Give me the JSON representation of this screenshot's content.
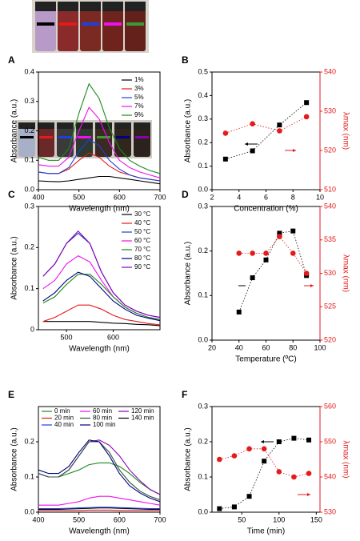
{
  "chart_data": [
    {
      "type": "line",
      "label": "A",
      "xlabel": "Wavelength (nm)",
      "ylabel": "Absorbance (a.u.)",
      "x": [
        400,
        425,
        450,
        475,
        500,
        525,
        550,
        575,
        600,
        625,
        650,
        675,
        700
      ],
      "xlim": [
        400,
        700
      ],
      "xticks": [
        400,
        500,
        600,
        700
      ],
      "ylim": [
        0,
        0.4
      ],
      "yticks": [
        {
          "value": 0,
          "label": "0.0"
        },
        0.1,
        0.2,
        0.3,
        0.4
      ],
      "legend": "upper right",
      "series": [
        {
          "name": "1%",
          "color": "#000000",
          "values": [
            0.03,
            0.028,
            0.027,
            0.03,
            0.035,
            0.04,
            0.045,
            0.045,
            0.04,
            0.035,
            0.03,
            0.025,
            0.02
          ]
        },
        {
          "name": "3%",
          "color": "#e41a1c",
          "values": [
            0.06,
            0.055,
            0.055,
            0.07,
            0.1,
            0.125,
            0.11,
            0.08,
            0.06,
            0.05,
            0.04,
            0.035,
            0.03
          ]
        },
        {
          "name": "5%",
          "color": "#1f3fd6",
          "values": [
            0.06,
            0.055,
            0.055,
            0.075,
            0.13,
            0.17,
            0.15,
            0.1,
            0.07,
            0.05,
            0.04,
            0.035,
            0.03
          ]
        },
        {
          "name": "7%",
          "color": "#ee10ee",
          "values": [
            0.085,
            0.08,
            0.08,
            0.11,
            0.2,
            0.28,
            0.24,
            0.16,
            0.1,
            0.075,
            0.06,
            0.05,
            0.04
          ]
        },
        {
          "name": "9%",
          "color": "#1a8a1a",
          "values": [
            0.11,
            0.1,
            0.1,
            0.14,
            0.26,
            0.36,
            0.31,
            0.21,
            0.14,
            0.1,
            0.08,
            0.065,
            0.055
          ]
        }
      ]
    },
    {
      "type": "scatter",
      "label": "B",
      "xlabel": "Concentration (%)",
      "ylabel": "Absorbance (a.u.)",
      "y2label": "λmax (nm)",
      "x": [
        3,
        5,
        7,
        9
      ],
      "xlim": [
        2,
        10
      ],
      "xticks": [
        2,
        4,
        6,
        8,
        10
      ],
      "ylim": [
        0,
        0.5
      ],
      "yticks": [
        {
          "value": 0,
          "label": "0.0"
        },
        0.1,
        0.2,
        0.3,
        0.4,
        0.5
      ],
      "y2lim": [
        510,
        540
      ],
      "y2ticks": [
        510,
        520,
        530,
        540
      ],
      "series": [
        {
          "color": "#000000",
          "marker": "square",
          "values": [
            0.13,
            0.165,
            0.275,
            0.37
          ]
        },
        {
          "color": "#e41a1c",
          "marker": "circle",
          "axis": "y2",
          "values": [
            524.4,
            526.8,
            525,
            528.6
          ]
        }
      ]
    },
    {
      "type": "line",
      "label": "C",
      "xlabel": "Wavelength (nm)",
      "ylabel": "Absorbance (a.u.)",
      "x": [
        450,
        475,
        500,
        525,
        550,
        575,
        600,
        625,
        650,
        675,
        700
      ],
      "xlim": [
        440,
        700
      ],
      "xticks": [
        500,
        600
      ],
      "ylim": [
        0,
        0.3
      ],
      "yticks": [
        0,
        0.1,
        0.2,
        0.3
      ],
      "legend": "upper right",
      "series": [
        {
          "name": "30 °C",
          "color": "#000000",
          "values": [
            0.02,
            0.02,
            0.02,
            0.02,
            0.02,
            0.018,
            0.016,
            0.015,
            0.013,
            0.012,
            0.01
          ]
        },
        {
          "name": "40 °C",
          "color": "#e41a1c",
          "values": [
            0.02,
            0.03,
            0.045,
            0.06,
            0.06,
            0.05,
            0.035,
            0.025,
            0.02,
            0.015,
            0.012
          ]
        },
        {
          "name": "50 °C",
          "color": "#1f3fd6",
          "values": [
            0.13,
            0.16,
            0.21,
            0.235,
            0.21,
            0.14,
            0.09,
            0.06,
            0.045,
            0.035,
            0.03
          ]
        },
        {
          "name": "60 °C",
          "color": "#ee10ee",
          "values": [
            0.1,
            0.12,
            0.16,
            0.18,
            0.165,
            0.12,
            0.08,
            0.055,
            0.04,
            0.03,
            0.025
          ]
        },
        {
          "name": "70 °C",
          "color": "#1a8a1a",
          "values": [
            0.065,
            0.08,
            0.11,
            0.135,
            0.135,
            0.11,
            0.08,
            0.055,
            0.04,
            0.03,
            0.025
          ]
        },
        {
          "name": "80 °C",
          "color": "#000080",
          "values": [
            0.07,
            0.09,
            0.12,
            0.14,
            0.13,
            0.1,
            0.07,
            0.05,
            0.035,
            0.028,
            0.022
          ]
        },
        {
          "name": "90 °C",
          "color": "#8b00b0",
          "values": [
            0.13,
            0.16,
            0.21,
            0.24,
            0.21,
            0.14,
            0.09,
            0.06,
            0.045,
            0.035,
            0.03
          ]
        }
      ]
    },
    {
      "type": "scatter",
      "label": "D",
      "xlabel": "Temperature (ºC)",
      "ylabel": "Absorbance (a.u.)",
      "y2label": "λmax (nm)",
      "x": [
        40,
        50,
        60,
        70,
        80,
        90
      ],
      "xlim": [
        20,
        100
      ],
      "xticks": [
        20,
        40,
        60,
        80,
        100
      ],
      "ylim": [
        0,
        0.3
      ],
      "yticks": [
        {
          "value": 0,
          "label": "0.0"
        },
        0.1,
        0.2,
        0.3
      ],
      "y2lim": [
        520,
        540
      ],
      "y2ticks": [
        520,
        525,
        530,
        535,
        540
      ],
      "series": [
        {
          "color": "#000000",
          "marker": "square",
          "values": [
            0.063,
            0.14,
            0.18,
            0.24,
            0.245,
            0.145
          ]
        },
        {
          "color": "#e41a1c",
          "marker": "circle",
          "axis": "y2",
          "values": [
            533,
            533,
            533,
            535.5,
            533,
            530
          ]
        }
      ]
    },
    {
      "type": "line",
      "label": "E",
      "xlabel": "Wavelength (nm)",
      "ylabel": "Absorbance (a.u.)",
      "x": [
        400,
        425,
        450,
        475,
        500,
        525,
        550,
        575,
        600,
        625,
        650,
        675,
        700
      ],
      "xlim": [
        400,
        700
      ],
      "xticks": [
        400,
        500,
        600,
        700
      ],
      "ylim": [
        0,
        0.3
      ],
      "yticks": [
        {
          "value": 0,
          "label": "0.0"
        },
        0.1,
        0.2
      ],
      "legend": "upper center",
      "legend_columns": 3,
      "series": [
        {
          "name": "0 min",
          "color": "#1a8a1a",
          "values": [
            0.11,
            0.1,
            0.1,
            0.11,
            0.12,
            0.135,
            0.14,
            0.14,
            0.13,
            0.11,
            0.085,
            0.065,
            0.05
          ]
        },
        {
          "name": "60 min",
          "color": "#ee10ee",
          "values": [
            0.02,
            0.02,
            0.02,
            0.025,
            0.03,
            0.04,
            0.045,
            0.045,
            0.04,
            0.035,
            0.03,
            0.025,
            0.02
          ]
        },
        {
          "name": "120 min",
          "color": "#8b00b0",
          "values": [
            0.11,
            0.1,
            0.1,
            0.12,
            0.16,
            0.2,
            0.205,
            0.19,
            0.16,
            0.12,
            0.09,
            0.065,
            0.05
          ]
        },
        {
          "name": "20 min",
          "color": "#e41a1c",
          "values": [
            0.005,
            0.005,
            0.005,
            0.005,
            0.005,
            0.006,
            0.006,
            0.006,
            0.005,
            0.005,
            0.005,
            0.005,
            0.005
          ]
        },
        {
          "name": "80 min",
          "color": "#335533",
          "values": [
            0.11,
            0.1,
            0.1,
            0.12,
            0.16,
            0.2,
            0.2,
            0.17,
            0.12,
            0.085,
            0.06,
            0.045,
            0.035
          ]
        },
        {
          "name": "140 min",
          "color": "#000000",
          "values": [
            0.008,
            0.008,
            0.008,
            0.009,
            0.01,
            0.011,
            0.012,
            0.012,
            0.011,
            0.01,
            0.009,
            0.008,
            0.008
          ]
        },
        {
          "name": "40 min",
          "color": "#1f3fd6",
          "values": [
            0.01,
            0.01,
            0.01,
            0.011,
            0.012,
            0.013,
            0.014,
            0.014,
            0.013,
            0.012,
            0.011,
            0.01,
            0.01
          ]
        },
        {
          "name": "100 min",
          "color": "#000080",
          "values": [
            0.12,
            0.11,
            0.11,
            0.13,
            0.17,
            0.205,
            0.2,
            0.16,
            0.11,
            0.075,
            0.055,
            0.04,
            0.03
          ]
        }
      ]
    },
    {
      "type": "scatter",
      "label": "F",
      "xlabel": "Time (min)",
      "ylabel": "Absorbance (a.u.)",
      "y2label": "λmax (nm)",
      "x": [
        20,
        40,
        60,
        80,
        100,
        120,
        140
      ],
      "xlim": [
        10,
        155
      ],
      "xticks": [
        50,
        100,
        150
      ],
      "ylim": [
        0,
        0.3
      ],
      "yticks": [
        {
          "value": 0,
          "label": "0.0"
        },
        0.1,
        0.2,
        0.3
      ],
      "y2lim": [
        530,
        560
      ],
      "y2ticks": [
        530,
        540,
        550,
        560
      ],
      "series": [
        {
          "color": "#000000",
          "marker": "square",
          "values": [
            0.01,
            0.015,
            0.045,
            0.145,
            0.2,
            0.21,
            0.205
          ]
        },
        {
          "color": "#e41a1c",
          "marker": "circle",
          "axis": "y2",
          "values": [
            545,
            546,
            548,
            548,
            541.5,
            540,
            541
          ]
        }
      ]
    }
  ]
}
